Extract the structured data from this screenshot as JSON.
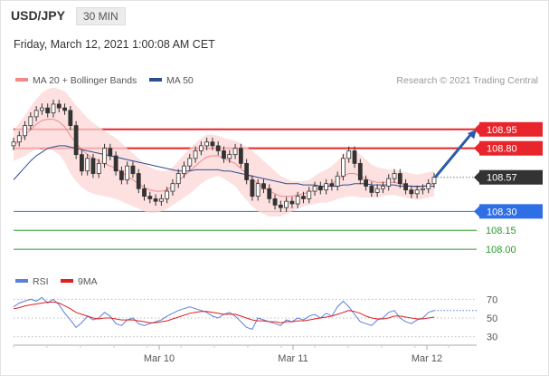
{
  "header": {
    "pair": "USD/JPY",
    "timeframe": "30 MIN"
  },
  "datetime": "Friday, March 12, 2021 1:00:08 AM CET",
  "legend": {
    "items": [
      {
        "label": "MA 20 + Bollinger Bands",
        "color": "#f08a8a"
      },
      {
        "label": "MA 50",
        "color": "#2b4f8f"
      }
    ],
    "copyright": "Research © 2021 Trading Central"
  },
  "rsi_legend": {
    "items": [
      {
        "label": "RSI",
        "color": "#5b7fe0"
      },
      {
        "label": "9MA",
        "color": "#e02020"
      }
    ]
  },
  "chart_data": [
    {
      "type": "candlestick",
      "yaxis_range": [
        107.85,
        109.25
      ],
      "x_ticks": [
        "Mar 10",
        "Mar 11",
        "Mar 12"
      ],
      "levels": [
        {
          "label": "108.95",
          "value": 108.95,
          "kind": "resistance",
          "color": "#e8252a"
        },
        {
          "label": "108.80",
          "value": 108.8,
          "kind": "resistance",
          "color": "#e8252a"
        },
        {
          "label": "108.57",
          "value": 108.57,
          "kind": "last-price",
          "color": "#333333"
        },
        {
          "label": "108.30",
          "value": 108.3,
          "kind": "pivot",
          "color": "#2f6fe6"
        },
        {
          "label": "108.15",
          "value": 108.15,
          "kind": "support",
          "color": "#2a9a2a"
        },
        {
          "label": "108.00",
          "value": 108.0,
          "kind": "support",
          "color": "#2a9a2a"
        }
      ],
      "series": [
        {
          "name": "MA 20 + Bollinger Bands",
          "color": "#f08a8a"
        },
        {
          "name": "MA 50",
          "color": "#2b4f8f"
        }
      ],
      "close": [
        108.85,
        108.9,
        108.98,
        109.05,
        109.1,
        109.12,
        109.08,
        109.15,
        109.12,
        109.1,
        108.98,
        108.75,
        108.62,
        108.72,
        108.6,
        108.68,
        108.8,
        108.74,
        108.62,
        108.55,
        108.66,
        108.6,
        108.48,
        108.42,
        108.4,
        108.38,
        108.4,
        108.46,
        108.52,
        108.6,
        108.66,
        108.72,
        108.78,
        108.82,
        108.85,
        108.82,
        108.78,
        108.72,
        108.75,
        108.8,
        108.68,
        108.55,
        108.42,
        108.52,
        108.48,
        108.4,
        108.35,
        108.33,
        108.38,
        108.36,
        108.42,
        108.4,
        108.46,
        108.5,
        108.47,
        108.52,
        108.5,
        108.58,
        108.72,
        108.78,
        108.68,
        108.55,
        108.5,
        108.45,
        108.48,
        108.5,
        108.56,
        108.6,
        108.52,
        108.47,
        108.44,
        108.47,
        108.48,
        108.52,
        108.57
      ],
      "ma20": [
        108.82,
        108.86,
        108.9,
        108.95,
        108.99,
        109.02,
        109.03,
        109.03,
        109.01,
        108.97,
        108.9,
        108.84,
        108.79,
        108.75,
        108.72,
        108.7,
        108.68,
        108.66,
        108.64,
        108.61,
        108.58,
        108.55,
        108.52,
        108.49,
        108.47,
        108.46,
        108.46,
        108.47,
        108.5,
        108.54,
        108.58,
        108.62,
        108.66,
        108.7,
        108.73,
        108.74,
        108.74,
        108.72,
        108.7,
        108.68,
        108.64,
        108.6,
        108.56,
        108.52,
        108.49,
        108.46,
        108.44,
        108.42,
        108.42,
        108.42,
        108.43,
        108.44,
        108.45,
        108.47,
        108.49,
        108.5,
        108.52,
        108.55,
        108.58,
        108.6,
        108.6,
        108.58,
        108.56,
        108.54,
        108.53,
        108.53,
        108.53,
        108.53,
        108.52,
        108.51,
        108.5,
        108.49,
        108.5,
        108.51,
        108.52
      ],
      "ma50": [
        108.55,
        108.6,
        108.65,
        108.7,
        108.74,
        108.77,
        108.8,
        108.81,
        108.82,
        108.82,
        108.81,
        108.8,
        108.79,
        108.78,
        108.77,
        108.76,
        108.75,
        108.74,
        108.73,
        108.72,
        108.71,
        108.7,
        108.69,
        108.68,
        108.67,
        108.66,
        108.65,
        108.64,
        108.63,
        108.62,
        108.62,
        108.62,
        108.63,
        108.63,
        108.63,
        108.63,
        108.63,
        108.62,
        108.62,
        108.61,
        108.6,
        108.59,
        108.58,
        108.57,
        108.56,
        108.55,
        108.54,
        108.53,
        108.52,
        108.52,
        108.52,
        108.51,
        108.51,
        108.51,
        108.5,
        108.5,
        108.5,
        108.5,
        108.51,
        108.51,
        108.52,
        108.52,
        108.52,
        108.51,
        108.51,
        108.51,
        108.51,
        108.51,
        108.5,
        108.5,
        108.5,
        108.5,
        108.5,
        108.5,
        108.5
      ],
      "bb_width": [
        0.12,
        0.14,
        0.16,
        0.18,
        0.2,
        0.22,
        0.24,
        0.25,
        0.26,
        0.28,
        0.3,
        0.3,
        0.3,
        0.29,
        0.28,
        0.27,
        0.26,
        0.25,
        0.24,
        0.23,
        0.22,
        0.21,
        0.2,
        0.19,
        0.18,
        0.17,
        0.16,
        0.15,
        0.15,
        0.16,
        0.17,
        0.18,
        0.18,
        0.18,
        0.18,
        0.17,
        0.16,
        0.16,
        0.17,
        0.18,
        0.2,
        0.21,
        0.22,
        0.22,
        0.21,
        0.2,
        0.18,
        0.16,
        0.14,
        0.12,
        0.11,
        0.1,
        0.1,
        0.11,
        0.12,
        0.13,
        0.14,
        0.15,
        0.17,
        0.18,
        0.18,
        0.17,
        0.15,
        0.13,
        0.12,
        0.11,
        0.1,
        0.1,
        0.1,
        0.1,
        0.1,
        0.1,
        0.1,
        0.1,
        0.1
      ]
    },
    {
      "type": "line",
      "ticks": [
        "70",
        "50",
        "30"
      ],
      "yaxis_range": [
        20,
        80
      ],
      "series": [
        {
          "name": "RSI",
          "color": "#5b7fe0",
          "values": [
            62,
            66,
            68,
            70,
            68,
            72,
            66,
            70,
            64,
            55,
            48,
            40,
            45,
            52,
            48,
            50,
            56,
            52,
            44,
            42,
            48,
            50,
            44,
            42,
            44,
            46,
            48,
            52,
            55,
            58,
            60,
            62,
            60,
            58,
            56,
            52,
            50,
            54,
            56,
            52,
            46,
            40,
            38,
            50,
            48,
            46,
            44,
            42,
            48,
            46,
            50,
            48,
            52,
            54,
            50,
            55,
            52,
            62,
            68,
            62,
            54,
            46,
            44,
            42,
            48,
            50,
            56,
            58,
            50,
            46,
            44,
            48,
            50,
            56,
            58
          ]
        },
        {
          "name": "9MA",
          "color": "#e02020",
          "values": [
            60,
            61,
            63,
            64,
            65,
            66,
            67,
            67,
            66,
            63,
            60,
            56,
            54,
            52,
            50,
            49,
            50,
            50,
            49,
            48,
            48,
            48,
            47,
            46,
            45,
            45,
            46,
            47,
            49,
            51,
            53,
            55,
            56,
            57,
            57,
            56,
            55,
            54,
            54,
            54,
            52,
            50,
            48,
            47,
            47,
            46,
            46,
            45,
            46,
            46,
            47,
            47,
            48,
            49,
            50,
            51,
            52,
            54,
            56,
            58,
            57,
            55,
            52,
            50,
            49,
            49,
            50,
            52,
            52,
            51,
            50,
            49,
            49,
            50,
            51
          ]
        }
      ]
    }
  ]
}
